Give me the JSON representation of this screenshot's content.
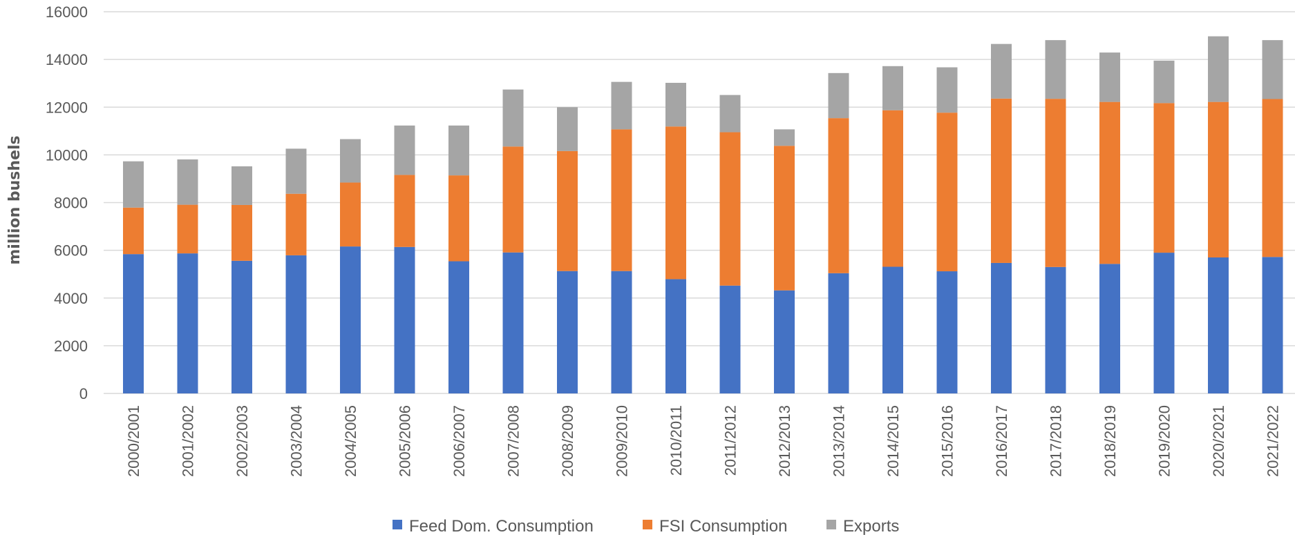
{
  "chart_data": {
    "type": "bar",
    "stacked": true,
    "title": "",
    "xlabel": "",
    "ylabel": "million bushels",
    "ylim": [
      0,
      16000
    ],
    "yticks": [
      0,
      2000,
      4000,
      6000,
      8000,
      10000,
      12000,
      14000,
      16000
    ],
    "grid": true,
    "legend_position": "bottom",
    "categories": [
      "2000/2001",
      "2001/2002",
      "2002/2003",
      "2003/2004",
      "2004/2005",
      "2005/2006",
      "2006/2007",
      "2007/2008",
      "2008/2009",
      "2009/2010",
      "2010/2011",
      "2011/2012",
      "2012/2013",
      "2013/2014",
      "2014/2015",
      "2015/2016",
      "2016/2017",
      "2017/2018",
      "2018/2019",
      "2019/2020",
      "2020/2021",
      "2021/2022"
    ],
    "series": [
      {
        "name": "Feed Dom. Consumption",
        "color": "#4472C4",
        "values": [
          5840,
          5870,
          5560,
          5790,
          6160,
          6140,
          5540,
          5910,
          5130,
          5130,
          4790,
          4520,
          4320,
          5040,
          5310,
          5120,
          5470,
          5300,
          5430,
          5900,
          5700,
          5720
        ]
      },
      {
        "name": "FSI Consumption",
        "color": "#ED7D31",
        "values": [
          1950,
          2040,
          2340,
          2580,
          2680,
          3020,
          3600,
          4440,
          5030,
          5940,
          6400,
          6430,
          6060,
          6500,
          6560,
          6650,
          6890,
          7050,
          6790,
          6270,
          6520,
          6620
        ]
      },
      {
        "name": "Exports",
        "color": "#A5A5A5",
        "values": [
          1940,
          1900,
          1620,
          1890,
          1820,
          2070,
          2090,
          2390,
          1840,
          1990,
          1830,
          1560,
          690,
          1890,
          1850,
          1900,
          2290,
          2460,
          2070,
          1780,
          2750,
          2470
        ]
      }
    ]
  }
}
